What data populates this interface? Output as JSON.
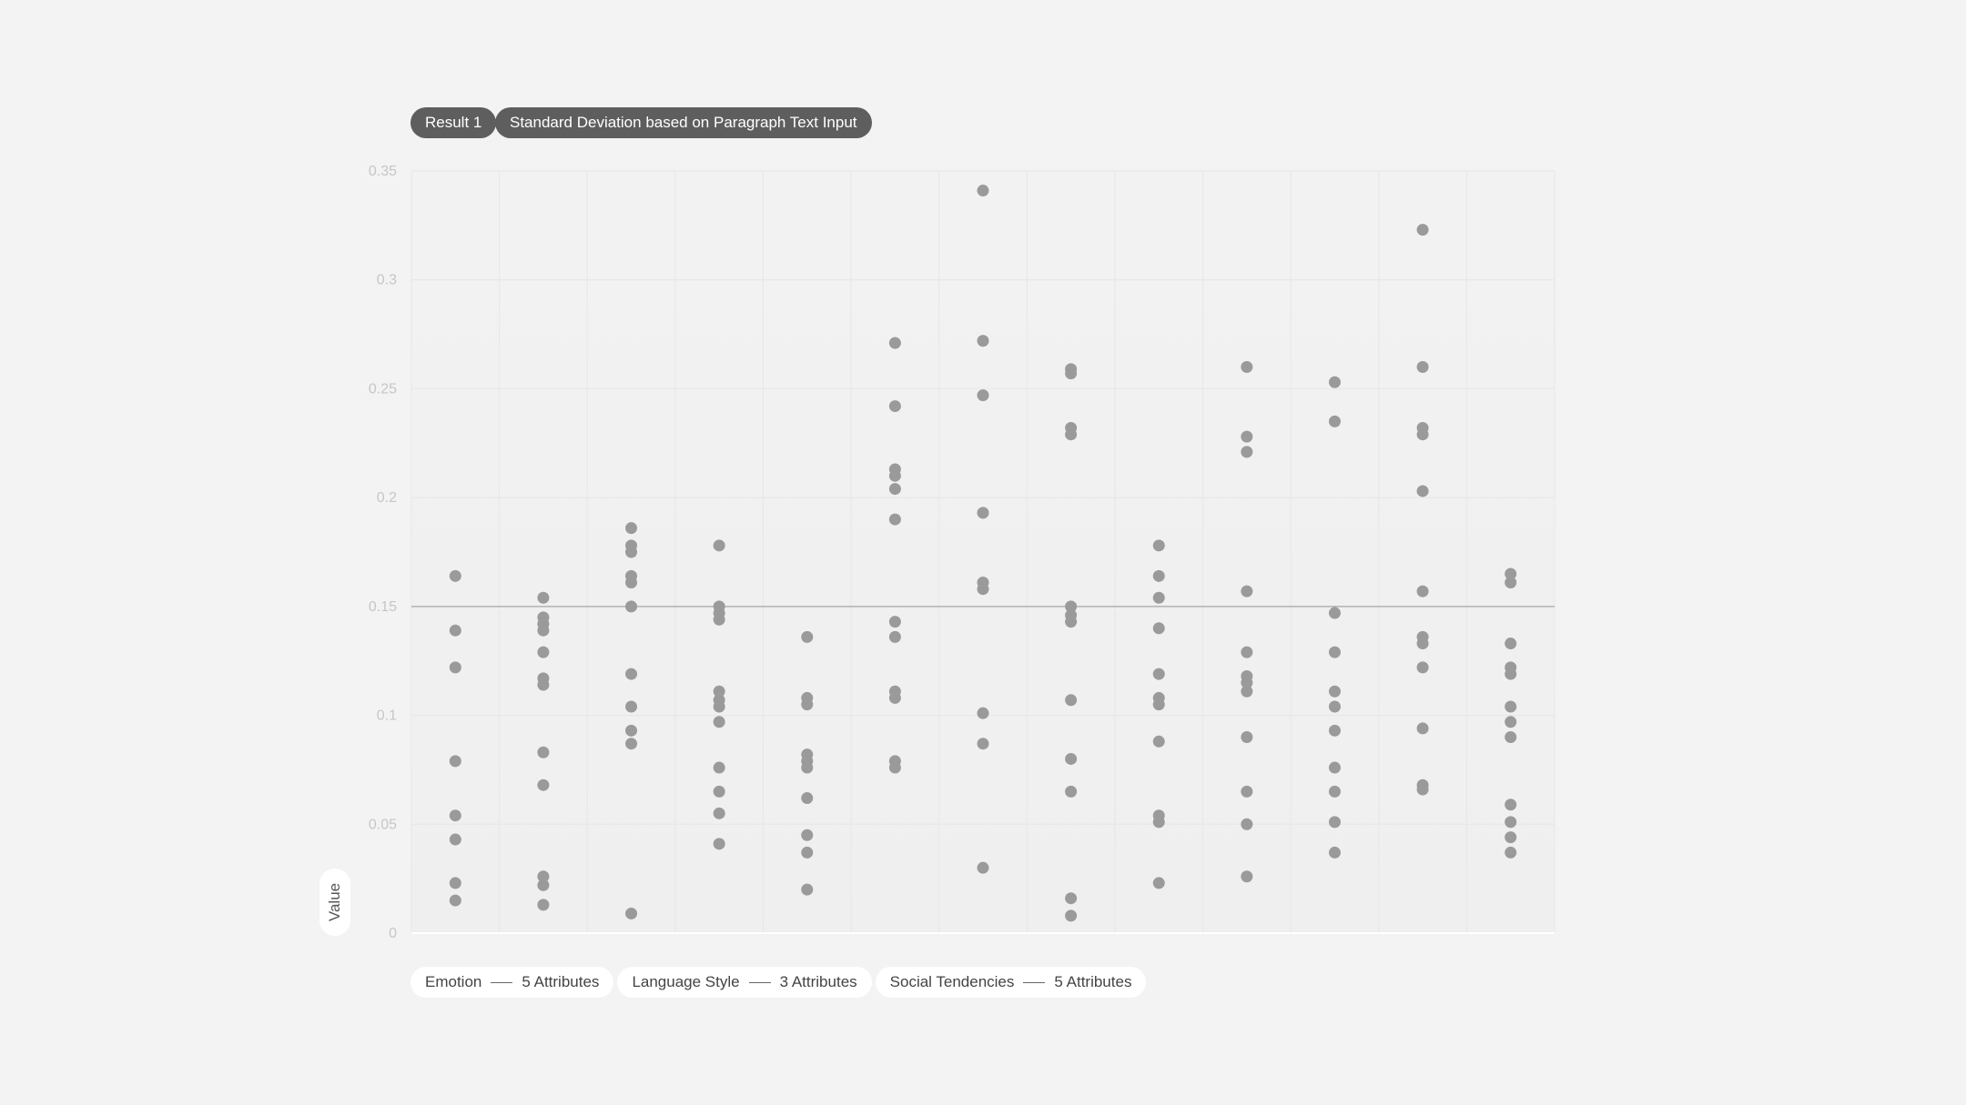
{
  "header": {
    "result_label": "Result 1",
    "subtitle": "Standard Deviation based on Paragraph Text Input"
  },
  "legend": [
    {
      "name": "Emotion",
      "count": "5 Attributes"
    },
    {
      "name": "Language Style",
      "count": "3 Attributes"
    },
    {
      "name": "Social Tendencies",
      "count": "5 Attributes"
    }
  ],
  "colors": {
    "point": "#9a9a9a",
    "background": "#f3f3f3",
    "plot_top": "#f2f2f2",
    "plot_bottom": "#efefef",
    "reference_line": "#a6a6a6",
    "badge": "#5e5e5e"
  },
  "chart_data": {
    "type": "scatter",
    "ylabel": "Value",
    "ylim": [
      0,
      0.35
    ],
    "yticks": [
      0,
      0.05,
      0.1,
      0.15,
      0.2,
      0.25,
      0.3,
      0.35
    ],
    "ytick_labels": [
      "0",
      "0.05",
      "0.1",
      "0.15",
      "0.2",
      "0.25",
      "0.3",
      "0.35"
    ],
    "grid": true,
    "reference_line": 0.15,
    "groups": 13,
    "series": [
      {
        "values": [
          0.164,
          0.139,
          0.122,
          0.079,
          0.054,
          0.043,
          0.023,
          0.015
        ]
      },
      {
        "values": [
          0.154,
          0.145,
          0.142,
          0.139,
          0.129,
          0.117,
          0.114,
          0.083,
          0.068,
          0.026,
          0.022,
          0.013
        ]
      },
      {
        "values": [
          0.186,
          0.178,
          0.175,
          0.164,
          0.161,
          0.15,
          0.119,
          0.104,
          0.093,
          0.087,
          0.009
        ]
      },
      {
        "values": [
          0.178,
          0.15,
          0.147,
          0.144,
          0.111,
          0.107,
          0.104,
          0.097,
          0.076,
          0.065,
          0.055,
          0.041
        ]
      },
      {
        "values": [
          0.136,
          0.108,
          0.105,
          0.082,
          0.079,
          0.076,
          0.062,
          0.045,
          0.037,
          0.02
        ]
      },
      {
        "values": [
          0.271,
          0.242,
          0.213,
          0.21,
          0.204,
          0.19,
          0.143,
          0.136,
          0.111,
          0.108,
          0.079,
          0.076
        ]
      },
      {
        "values": [
          0.341,
          0.272,
          0.247,
          0.193,
          0.161,
          0.158,
          0.101,
          0.087,
          0.03
        ]
      },
      {
        "values": [
          0.259,
          0.257,
          0.232,
          0.229,
          0.15,
          0.146,
          0.143,
          0.107,
          0.08,
          0.065,
          0.016,
          0.008
        ]
      },
      {
        "values": [
          0.178,
          0.164,
          0.154,
          0.14,
          0.119,
          0.108,
          0.105,
          0.088,
          0.054,
          0.051,
          0.023
        ]
      },
      {
        "values": [
          0.26,
          0.228,
          0.221,
          0.157,
          0.129,
          0.118,
          0.115,
          0.111,
          0.09,
          0.065,
          0.05,
          0.026
        ]
      },
      {
        "values": [
          0.253,
          0.235,
          0.147,
          0.129,
          0.111,
          0.104,
          0.093,
          0.076,
          0.065,
          0.051,
          0.037
        ]
      },
      {
        "values": [
          0.323,
          0.26,
          0.232,
          0.229,
          0.203,
          0.157,
          0.136,
          0.133,
          0.122,
          0.094,
          0.068,
          0.066
        ]
      },
      {
        "values": [
          0.165,
          0.161,
          0.133,
          0.122,
          0.119,
          0.104,
          0.097,
          0.09,
          0.059,
          0.051,
          0.044,
          0.037
        ]
      }
    ]
  }
}
